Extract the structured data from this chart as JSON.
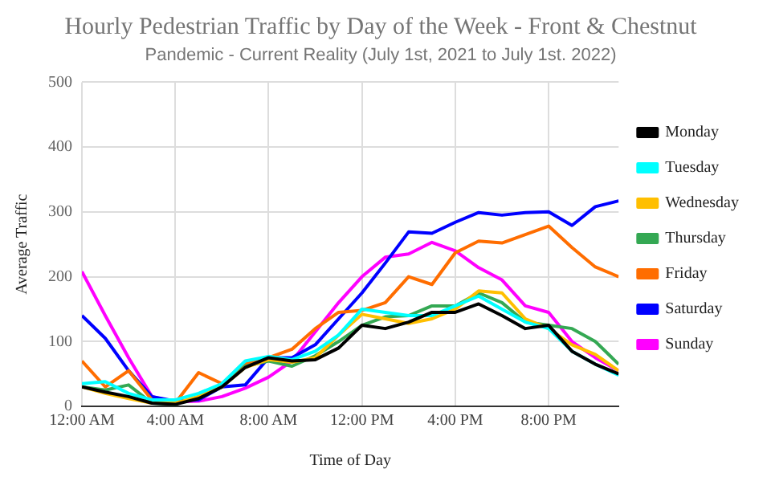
{
  "chart_data": {
    "type": "line",
    "title": "Hourly Pedestrian Traffic by Day of the Week - Front & Chestnut",
    "subtitle": "Pandemic - Current Reality (July 1st, 2021 to July 1st. 2022)",
    "xlabel": "Time of Day",
    "ylabel": "Average Traffic",
    "x": [
      0,
      1,
      2,
      3,
      4,
      5,
      6,
      7,
      8,
      9,
      10,
      11,
      12,
      13,
      14,
      15,
      16,
      17,
      18,
      19,
      20,
      21,
      22,
      23
    ],
    "xlim": [
      0,
      23
    ],
    "xticks": [
      {
        "value": 0,
        "label": "12:00 AM"
      },
      {
        "value": 4,
        "label": "4:00 AM"
      },
      {
        "value": 8,
        "label": "8:00 AM"
      },
      {
        "value": 12,
        "label": "12:00 PM"
      },
      {
        "value": 16,
        "label": "4:00 PM"
      },
      {
        "value": 20,
        "label": "8:00 PM"
      }
    ],
    "ylim": [
      0,
      500
    ],
    "yticks": [
      0,
      100,
      200,
      300,
      400,
      500
    ],
    "grid": true,
    "legend": "right",
    "marker": "none",
    "line_style": "solid",
    "series": [
      {
        "name": "Monday",
        "color": "#000000",
        "values": [
          30,
          22,
          15,
          5,
          3,
          12,
          30,
          60,
          75,
          70,
          72,
          90,
          125,
          120,
          130,
          145,
          145,
          158,
          140,
          120,
          125,
          85,
          65,
          50
        ]
      },
      {
        "name": "Tuesday",
        "color": "#00ffff",
        "values": [
          35,
          38,
          20,
          10,
          10,
          20,
          35,
          70,
          77,
          72,
          85,
          110,
          150,
          145,
          140,
          140,
          155,
          170,
          150,
          130,
          120,
          85,
          65,
          48
        ]
      },
      {
        "name": "Wednesday",
        "color": "#ffbf00",
        "values": [
          30,
          20,
          12,
          5,
          5,
          15,
          30,
          60,
          72,
          68,
          75,
          110,
          142,
          135,
          128,
          135,
          150,
          178,
          175,
          135,
          120,
          95,
          80,
          55
        ]
      },
      {
        "name": "Thursday",
        "color": "#34a853",
        "values": [
          30,
          25,
          33,
          5,
          3,
          15,
          30,
          62,
          70,
          62,
          78,
          100,
          125,
          138,
          140,
          155,
          155,
          175,
          160,
          130,
          125,
          120,
          100,
          65
        ]
      },
      {
        "name": "Friday",
        "color": "#ff6d00",
        "values": [
          70,
          30,
          55,
          10,
          5,
          52,
          35,
          65,
          75,
          88,
          120,
          145,
          148,
          160,
          200,
          188,
          237,
          255,
          252,
          265,
          278,
          245,
          215,
          200
        ]
      },
      {
        "name": "Saturday",
        "color": "#0000ff",
        "values": [
          140,
          105,
          55,
          15,
          8,
          10,
          30,
          33,
          75,
          75,
          95,
          135,
          175,
          221,
          269,
          267,
          284,
          299,
          295,
          299,
          300,
          279,
          308,
          317
        ]
      },
      {
        "name": "Sunday",
        "color": "#ff00ff",
        "values": [
          208,
          140,
          75,
          15,
          7,
          8,
          15,
          28,
          45,
          70,
          115,
          160,
          200,
          230,
          235,
          253,
          240,
          214,
          195,
          155,
          145,
          100,
          75,
          55
        ]
      }
    ]
  }
}
